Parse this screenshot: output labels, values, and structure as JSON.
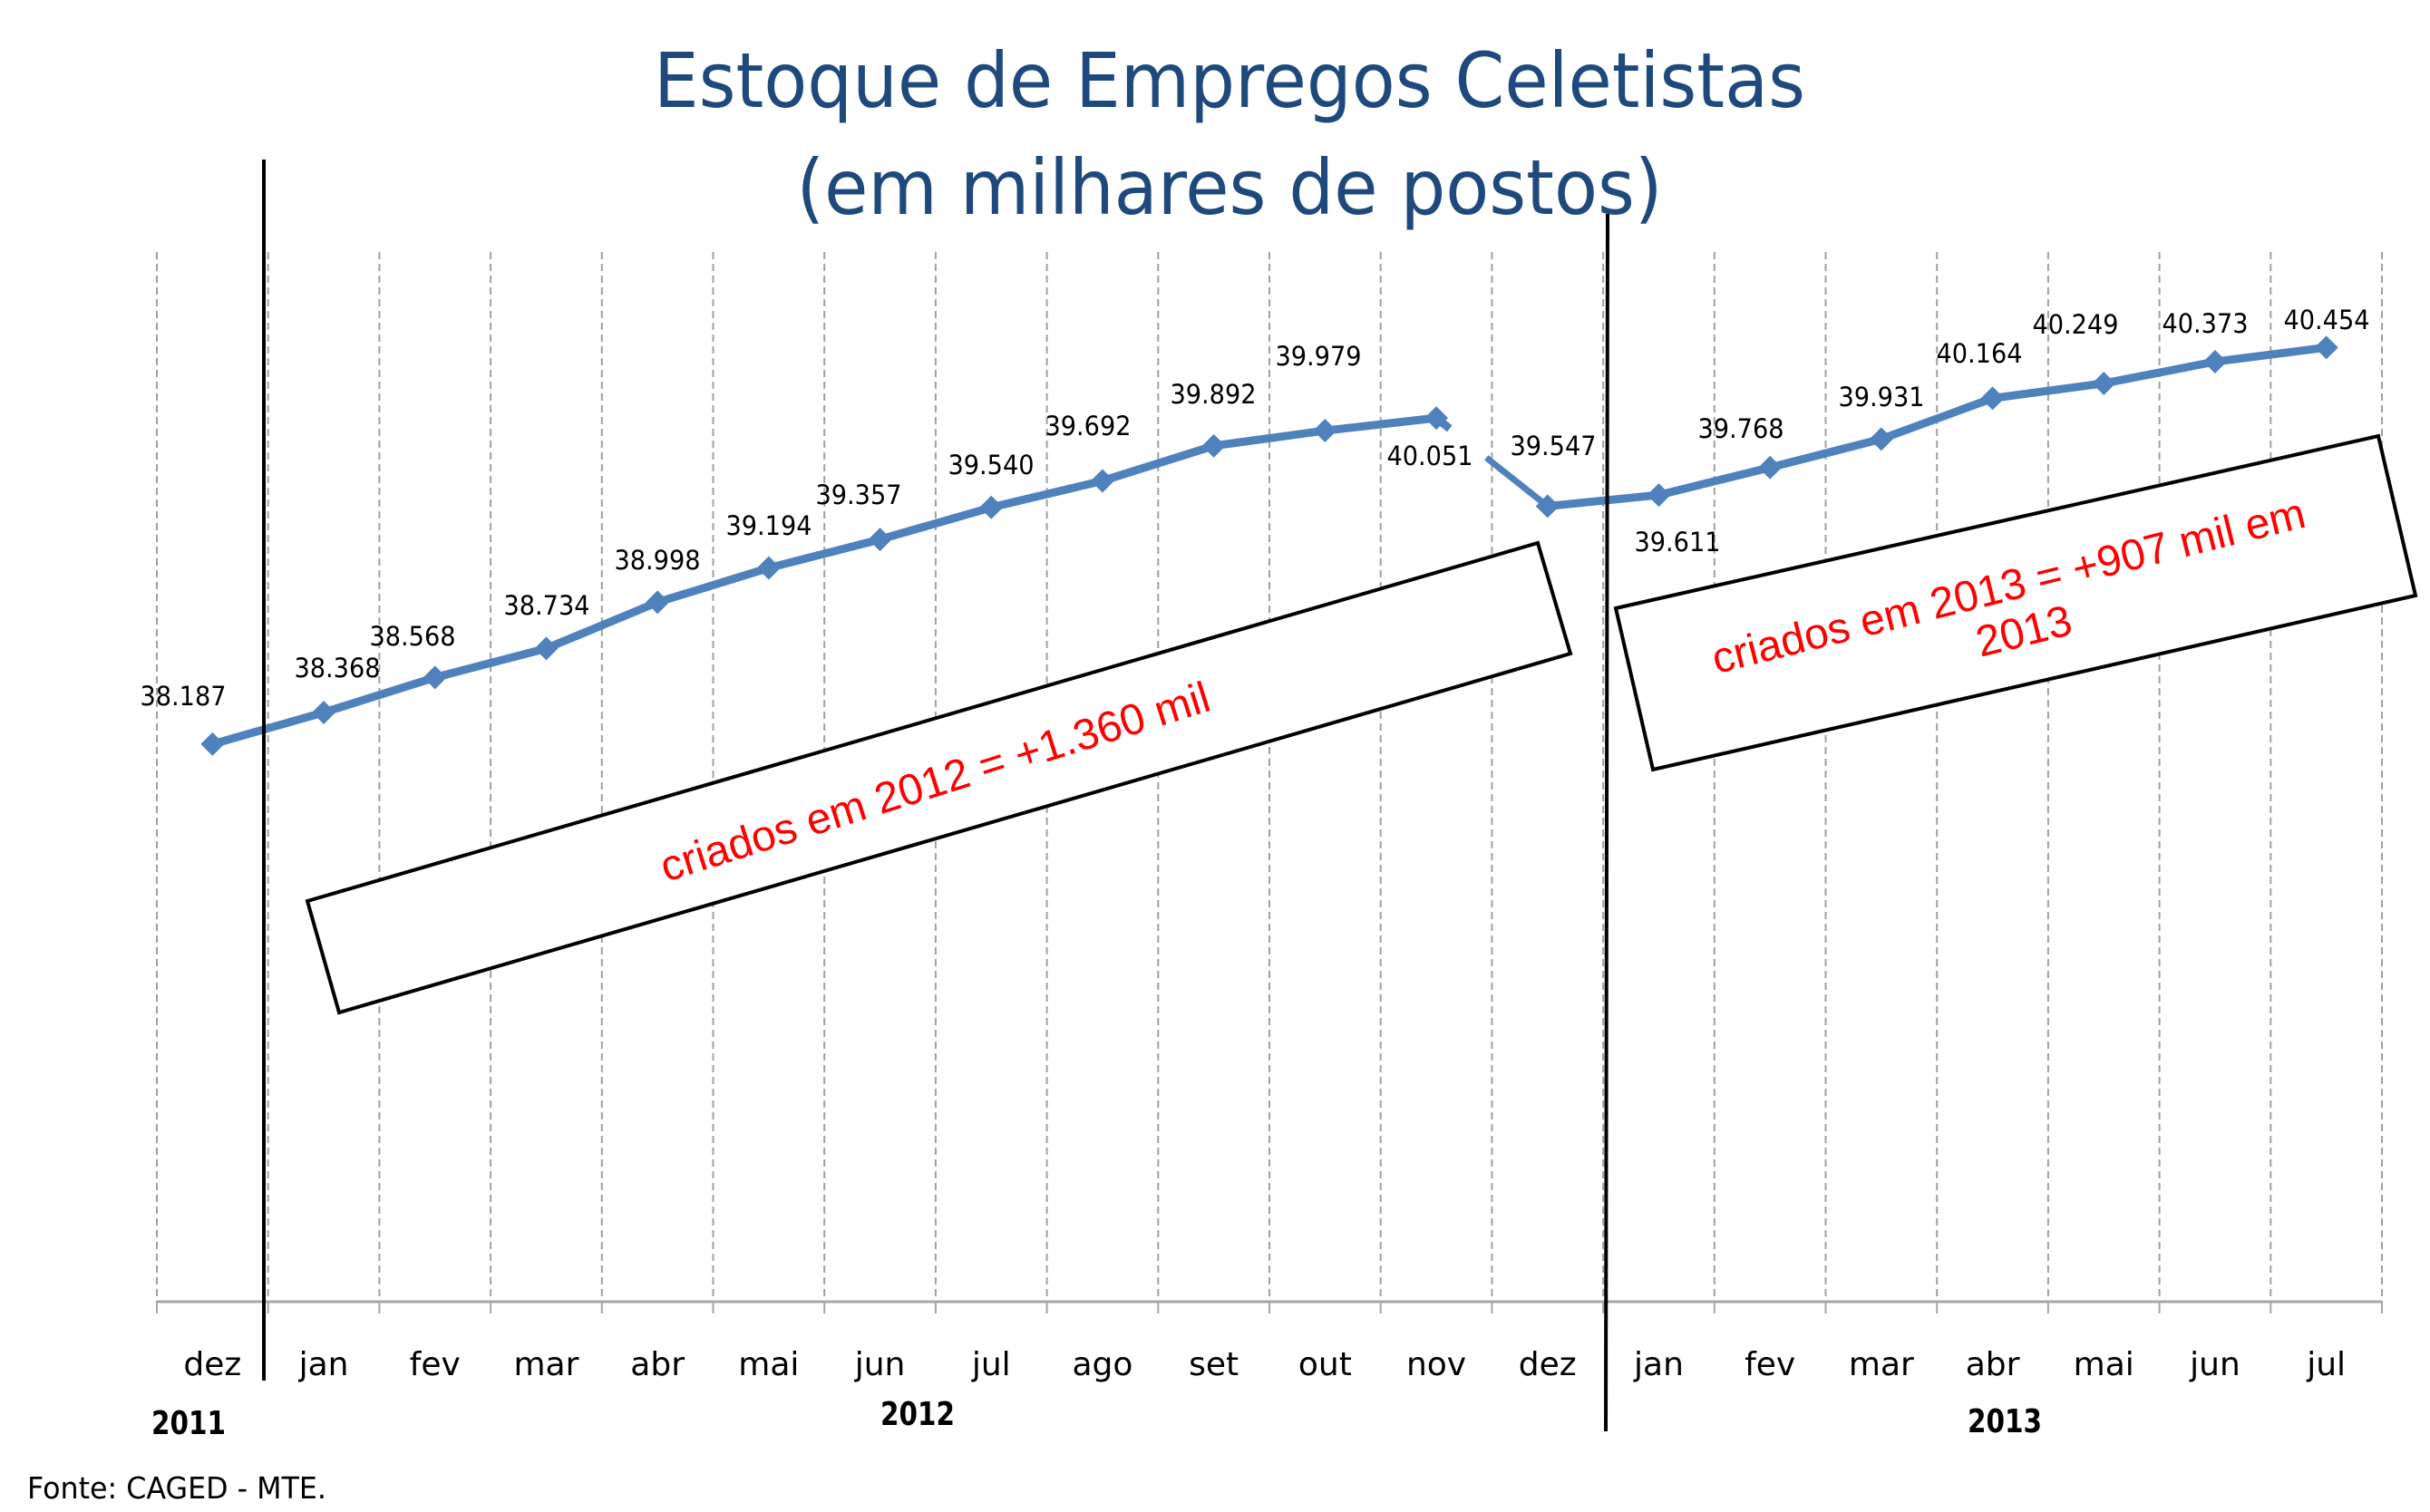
{
  "title": {
    "line1": "Estoque de Empregos Celetistas",
    "line2": "(em milhares de postos)"
  },
  "source": "Fonte: CAGED - MTE.",
  "colors": {
    "title": "#1F497D",
    "series": "#4F81BD",
    "annotation_text": "#FF0000",
    "annotation_border": "#000000",
    "gridline": "#A0A0A0",
    "axis": "#A6A6A6",
    "year_separator": "#000000"
  },
  "annotations": [
    {
      "id": "box-2012",
      "lines": [
        "criados em 2012 = +1.360 mil"
      ]
    },
    {
      "id": "box-2013",
      "lines": [
        "criados em 2013 = +907 mil em",
        "2013"
      ]
    }
  ],
  "year_labels": [
    "2011",
    "2012",
    "2013"
  ],
  "chart_data": {
    "type": "line",
    "title": "Estoque de Empregos Celetistas (em milhares de postos)",
    "xlabel": "",
    "ylabel": "",
    "ylim": [
      35000,
      41000
    ],
    "grid": {
      "vertical": true,
      "horizontal": false,
      "style": "dashed"
    },
    "legend": null,
    "categories": [
      "dez",
      "jan",
      "fev",
      "mar",
      "abr",
      "mai",
      "jun",
      "jul",
      "ago",
      "set",
      "out",
      "nov",
      "dez",
      "jan",
      "fev",
      "mar",
      "abr",
      "mai",
      "jun",
      "jul"
    ],
    "category_years": [
      "2011",
      "2012",
      "2012",
      "2012",
      "2012",
      "2012",
      "2012",
      "2012",
      "2012",
      "2012",
      "2012",
      "2012",
      "2012",
      "2013",
      "2013",
      "2013",
      "2013",
      "2013",
      "2013",
      "2013"
    ],
    "series": [
      {
        "name": "Estoque de Empregos Celetistas",
        "values": [
          38187,
          38368,
          38568,
          38734,
          38998,
          39194,
          39357,
          39540,
          39692,
          39892,
          39979,
          40051,
          39547,
          39611,
          39768,
          39931,
          40164,
          40249,
          40373,
          40454
        ],
        "labels": [
          "38.187",
          "38.368",
          "38.568",
          "38.734",
          "38.998",
          "39.194",
          "39.357",
          "39.540",
          "39.692",
          "39.892",
          "39.979",
          "40.051",
          "39.547",
          "39.611",
          "39.768",
          "39.931",
          "40.164",
          "40.249",
          "40.373",
          "40.454"
        ]
      }
    ],
    "annotations": [
      "criados em 2012 = +1.360 mil",
      "criados em 2013 = +907 mil em 2013"
    ]
  }
}
